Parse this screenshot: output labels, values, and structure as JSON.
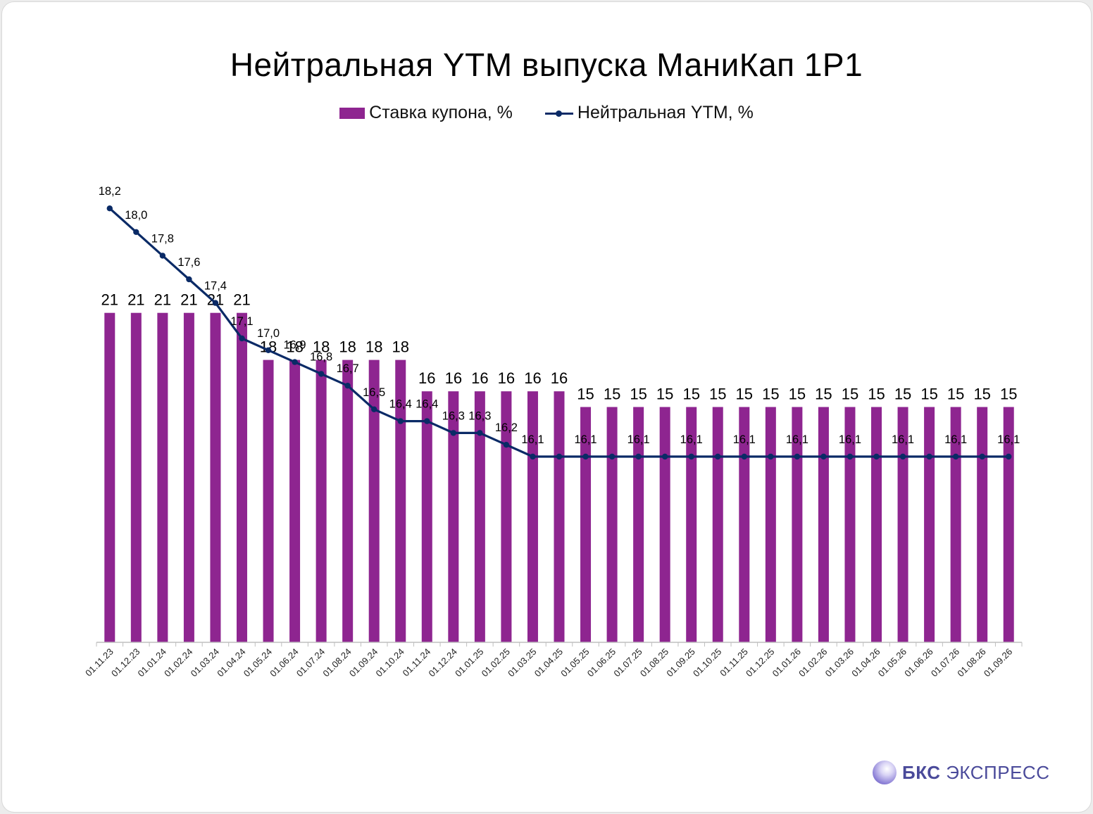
{
  "title": "Нейтральная YTM выпуска МаниКап 1P1",
  "legend": {
    "bar_label": "Ставка купона, %",
    "line_label": "Нейтральная YTM, %"
  },
  "colors": {
    "bar": "#8e2590",
    "line": "#0a2a66"
  },
  "logo": {
    "strong": "БКС",
    "rest": "ЭКСПРЕСС"
  },
  "chart_data": {
    "type": "bar",
    "title": "Нейтральная YTM выпуска МаниКап 1P1",
    "xlabel": "",
    "ylabel": "",
    "legend_position": "top",
    "grid": false,
    "categories": [
      "01.11.23",
      "01.12.23",
      "01.01.24",
      "01.02.24",
      "01.03.24",
      "01.04.24",
      "01.05.24",
      "01.06.24",
      "01.07.24",
      "01.08.24",
      "01.09.24",
      "01.10.24",
      "01.11.24",
      "01.12.24",
      "01.01.25",
      "01.02.25",
      "01.03.25",
      "01.04.25",
      "01.05.25",
      "01.06.25",
      "01.07.25",
      "01.08.25",
      "01.09.25",
      "01.10.25",
      "01.11.25",
      "01.12.25",
      "01.01.26",
      "01.02.26",
      "01.03.26",
      "01.04.26",
      "01.05.26",
      "01.06.26",
      "01.07.26",
      "01.08.26",
      "01.09.26"
    ],
    "series": [
      {
        "name": "Ставка купона, %",
        "type": "bar",
        "values": [
          21,
          21,
          21,
          21,
          21,
          21,
          18,
          18,
          18,
          18,
          18,
          18,
          16,
          16,
          16,
          16,
          16,
          16,
          15,
          15,
          15,
          15,
          15,
          15,
          15,
          15,
          15,
          15,
          15,
          15,
          15,
          15,
          15,
          15,
          15
        ],
        "labels": [
          "21",
          "21",
          "21",
          "21",
          "21",
          "21",
          "18",
          "18",
          "18",
          "18",
          "18",
          "18",
          "16",
          "16",
          "16",
          "16",
          "16",
          "16",
          "15",
          "15",
          "15",
          "15",
          "15",
          "15",
          "15",
          "15",
          "15",
          "15",
          "15",
          "15",
          "15",
          "15",
          "15",
          "15",
          "15"
        ]
      },
      {
        "name": "Нейтральная YTM, %",
        "type": "line",
        "values": [
          18.2,
          18.0,
          17.8,
          17.6,
          17.4,
          17.1,
          17.0,
          16.9,
          16.8,
          16.7,
          16.5,
          16.4,
          16.4,
          16.3,
          16.3,
          16.2,
          16.1,
          16.1,
          16.1,
          16.1,
          16.1,
          16.1,
          16.1,
          16.1,
          16.1,
          16.1,
          16.1,
          16.1,
          16.1,
          16.1,
          16.1,
          16.1,
          16.1,
          16.1,
          16.1
        ],
        "labels": [
          "18,2",
          "18,0",
          "17,8",
          "17,6",
          "17,4",
          "17,1",
          "17,0",
          "16,9",
          "16,8",
          "16,7",
          "16,5",
          "16,4",
          "16,4",
          "16,3",
          "16,3",
          "16,2",
          "16,1",
          "",
          "16,1",
          "",
          "16,1",
          "",
          "16,1",
          "",
          "16,1",
          "",
          "16,1",
          "",
          "16,1",
          "",
          "16,1",
          "",
          "16,1",
          "",
          "16,1"
        ]
      }
    ]
  }
}
